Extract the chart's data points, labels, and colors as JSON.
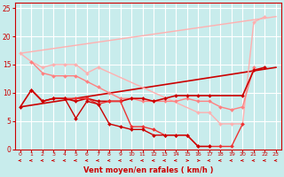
{
  "background_color": "#c8ecec",
  "grid_color": "#ffffff",
  "xlabel": "Vent moyen/en rafales ( km/h )",
  "xlabel_color": "#cc0000",
  "tick_color": "#cc0000",
  "xlim": [
    -0.5,
    23.5
  ],
  "ylim": [
    0,
    26
  ],
  "yticks": [
    0,
    5,
    10,
    15,
    20,
    25
  ],
  "xticks": [
    0,
    1,
    2,
    3,
    4,
    5,
    6,
    7,
    8,
    9,
    10,
    11,
    12,
    13,
    14,
    15,
    16,
    17,
    18,
    19,
    20,
    21,
    22,
    23
  ],
  "lines": [
    {
      "x": [
        0,
        23
      ],
      "y": [
        17,
        23.5
      ],
      "color": "#ffb0b0",
      "lw": 1.0,
      "marker": null
    },
    {
      "x": [
        0,
        1,
        2,
        3,
        4,
        5,
        6,
        7,
        16,
        17,
        18,
        19,
        20,
        21,
        22
      ],
      "y": [
        17,
        15.5,
        14.5,
        15,
        15,
        15,
        13.5,
        14.5,
        6.5,
        6.5,
        4.5,
        4.5,
        4.5,
        22.5,
        23.5
      ],
      "color": "#ffb0b0",
      "lw": 1.0,
      "marker": "D",
      "ms": 2.0
    },
    {
      "x": [
        1,
        2,
        3,
        4,
        5,
        6,
        7,
        8,
        9,
        10,
        11,
        12,
        13,
        14,
        15,
        16,
        17,
        18,
        19,
        20,
        21
      ],
      "y": [
        15.5,
        13.5,
        13,
        13,
        13,
        12,
        11,
        10,
        9,
        9,
        8.5,
        8.5,
        8.5,
        8.5,
        9,
        8.5,
        8.5,
        7.5,
        7,
        7.5,
        14.5
      ],
      "color": "#ff8080",
      "lw": 1.0,
      "marker": "D",
      "ms": 2.0
    },
    {
      "x": [
        0,
        23
      ],
      "y": [
        7.5,
        14.5
      ],
      "color": "#cc0000",
      "lw": 1.2,
      "marker": null
    },
    {
      "x": [
        0,
        1,
        2,
        3,
        4,
        5,
        6,
        7,
        8,
        9,
        10,
        11,
        12,
        13,
        14,
        15,
        16,
        17,
        20,
        21,
        22
      ],
      "y": [
        7.5,
        10.5,
        8.5,
        9,
        9,
        8.5,
        9,
        8.5,
        8.5,
        8.5,
        9,
        9,
        8.5,
        9,
        9.5,
        9.5,
        9.5,
        9.5,
        9.5,
        14,
        14.5
      ],
      "color": "#cc0000",
      "lw": 1.2,
      "marker": "D",
      "ms": 2.0
    },
    {
      "x": [
        1,
        2,
        3,
        4,
        5,
        6,
        7,
        8,
        9,
        10,
        11,
        12,
        13,
        14,
        15,
        16,
        17,
        18,
        19,
        20
      ],
      "y": [
        10.5,
        8.5,
        9,
        9,
        9,
        9,
        8,
        8.5,
        8.5,
        4,
        4,
        3.5,
        2.5,
        2.5,
        2.5,
        0.5,
        0.5,
        0.5,
        0.5,
        4.5
      ],
      "color": "#ee3333",
      "lw": 1.0,
      "marker": "D",
      "ms": 2.0
    },
    {
      "x": [
        1,
        2,
        3,
        4,
        5,
        6,
        7,
        8,
        9,
        10,
        11,
        12,
        13,
        14,
        15,
        16,
        17
      ],
      "y": [
        10.5,
        8.5,
        9,
        9,
        5.5,
        8.5,
        8,
        4.5,
        4,
        3.5,
        3.5,
        2.5,
        2.5,
        2.5,
        2.5,
        0.5,
        0.5
      ],
      "color": "#cc0000",
      "lw": 1.0,
      "marker": "D",
      "ms": 2.0
    }
  ],
  "arrows": {
    "y_data": -2.0,
    "directions": [
      "left",
      "left",
      "left",
      "left",
      "left",
      "left",
      "left",
      "left",
      "left",
      "left",
      "left",
      "left",
      "left",
      "left",
      "left",
      "right",
      "right",
      "left",
      "left",
      "left",
      "left",
      "left",
      "left",
      "left"
    ]
  }
}
